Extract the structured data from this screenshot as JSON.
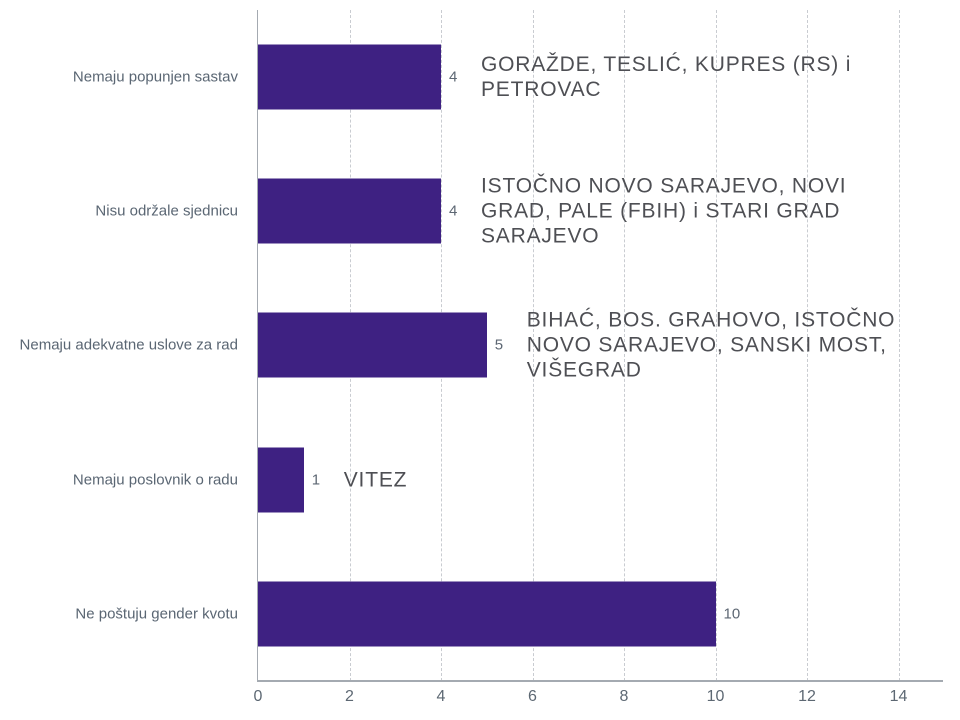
{
  "chart_data": {
    "type": "bar",
    "orientation": "horizontal",
    "title": "",
    "xlabel": "",
    "ylabel": "",
    "categories": [
      "Nemaju popunjen sastav",
      "Nisu održale sjednicu",
      "Nemaju adekvatne uslove za rad",
      "Nemaju poslovnik o radu",
      "Ne poštuju gender kvotu"
    ],
    "values": [
      4,
      4,
      5,
      1,
      10
    ],
    "value_labels": [
      "4",
      "4",
      "5",
      "1",
      "10"
    ],
    "annotations": [
      "GORAŽDE, TESLIĆ, KUPRES (RS) i PETROVAC",
      "ISTOČNO NOVO SARAJEVO, NOVI GRAD, PALE (FBIH) i STARI GRAD SARAJEVO",
      "BIHAĆ, BOS. GRAHOVO, ISTOČNO NOVO SARAJEVO, SANSKI MOST, VIŠEGRAD",
      "VITEZ",
      ""
    ],
    "x_ticks": [
      0,
      2,
      4,
      6,
      8,
      10,
      12,
      14
    ],
    "xlim": [
      0,
      15
    ],
    "grid": "vertical-dashed",
    "legend": "none",
    "bar_color": "#3e2182"
  },
  "rows": [
    {
      "label": "Nemaju popunjen sastav",
      "value": "4",
      "annotation_lines": [
        "GORAŽDE, TESLIĆ, KUPRES (RS) i",
        "PETROVAC"
      ]
    },
    {
      "label": "Nisu održale sjednicu",
      "value": "4",
      "annotation_lines": [
        "ISTOČNO NOVO SARAJEVO, NOVI",
        "GRAD, PALE (FBIH) i STARI GRAD",
        "SARAJEVO"
      ]
    },
    {
      "label": "Nemaju adekvatne uslove za rad",
      "value": "5",
      "annotation_lines": [
        "BIHAĆ, BOS. GRAHOVO, ISTOČNO",
        "NOVO SARAJEVO, SANSKI MOST,",
        "VIŠEGRAD"
      ]
    },
    {
      "label": "Nemaju poslovnik o radu",
      "value": "1",
      "annotation_lines": [
        "VITEZ"
      ]
    },
    {
      "label": "Ne poštuju gender kvotu",
      "value": "10",
      "annotation_lines": []
    }
  ],
  "x_axis": {
    "tick_labels": [
      "0",
      "2",
      "4",
      "6",
      "8",
      "10",
      "12",
      "14"
    ]
  },
  "colors": {
    "bar": "#3e2182",
    "category_label": "#5a6673",
    "value_label": "#5d6773",
    "annotation": "#4e4f54",
    "gridline": "#c9ccd1",
    "axis": "#a4aab1",
    "tick_label": "#5d6873",
    "background": "#ffffff"
  }
}
